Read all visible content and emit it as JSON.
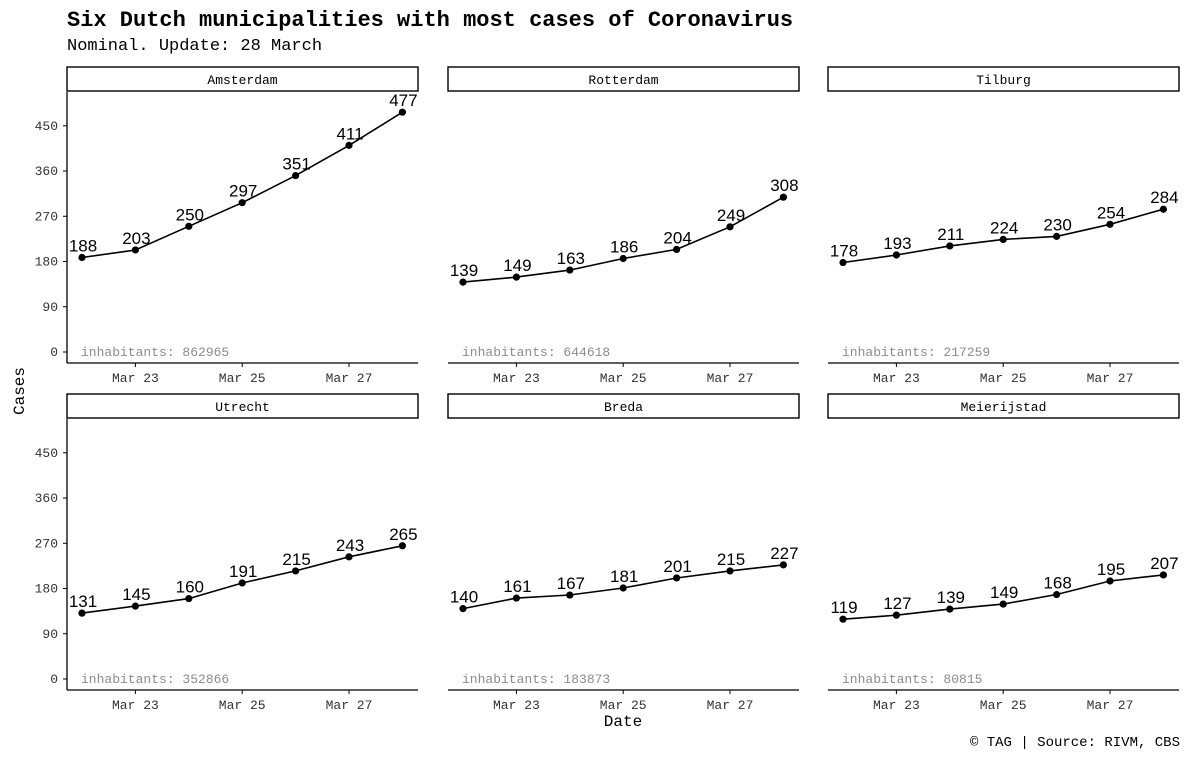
{
  "title": "Six Dutch municipalities with most cases of Coronavirus",
  "subtitle": "Nominal. Update: 28 March",
  "caption": "© TAG | Source: RIVM, CBS",
  "chart_data": {
    "type": "line",
    "xlabel": "Date",
    "ylabel": "Cases",
    "x": [
      "2020-03-22",
      "2020-03-23",
      "2020-03-24",
      "2020-03-25",
      "2020-03-26",
      "2020-03-27",
      "2020-03-28"
    ],
    "x_tick_labels": [
      "Mar 23",
      "Mar 25",
      "Mar 27"
    ],
    "y_ticks": [
      0,
      90,
      180,
      270,
      360,
      450
    ],
    "ylim": [
      0,
      477
    ],
    "grid": false,
    "inhabitants_label": "inhabitants:",
    "panels": [
      {
        "name": "Amsterdam",
        "inhabitants": "862965",
        "values": [
          188,
          203,
          250,
          297,
          351,
          411,
          477
        ]
      },
      {
        "name": "Rotterdam",
        "inhabitants": "644618",
        "values": [
          139,
          149,
          163,
          186,
          204,
          249,
          308
        ]
      },
      {
        "name": "Tilburg",
        "inhabitants": "217259",
        "values": [
          178,
          193,
          211,
          224,
          230,
          254,
          284
        ]
      },
      {
        "name": "Utrecht",
        "inhabitants": "352866",
        "values": [
          131,
          145,
          160,
          191,
          215,
          243,
          265
        ]
      },
      {
        "name": "Breda",
        "inhabitants": "183873",
        "values": [
          140,
          161,
          167,
          181,
          201,
          215,
          227
        ]
      },
      {
        "name": "Meierijstad",
        "inhabitants": "80815",
        "values": [
          119,
          127,
          139,
          149,
          168,
          195,
          207
        ]
      }
    ]
  }
}
